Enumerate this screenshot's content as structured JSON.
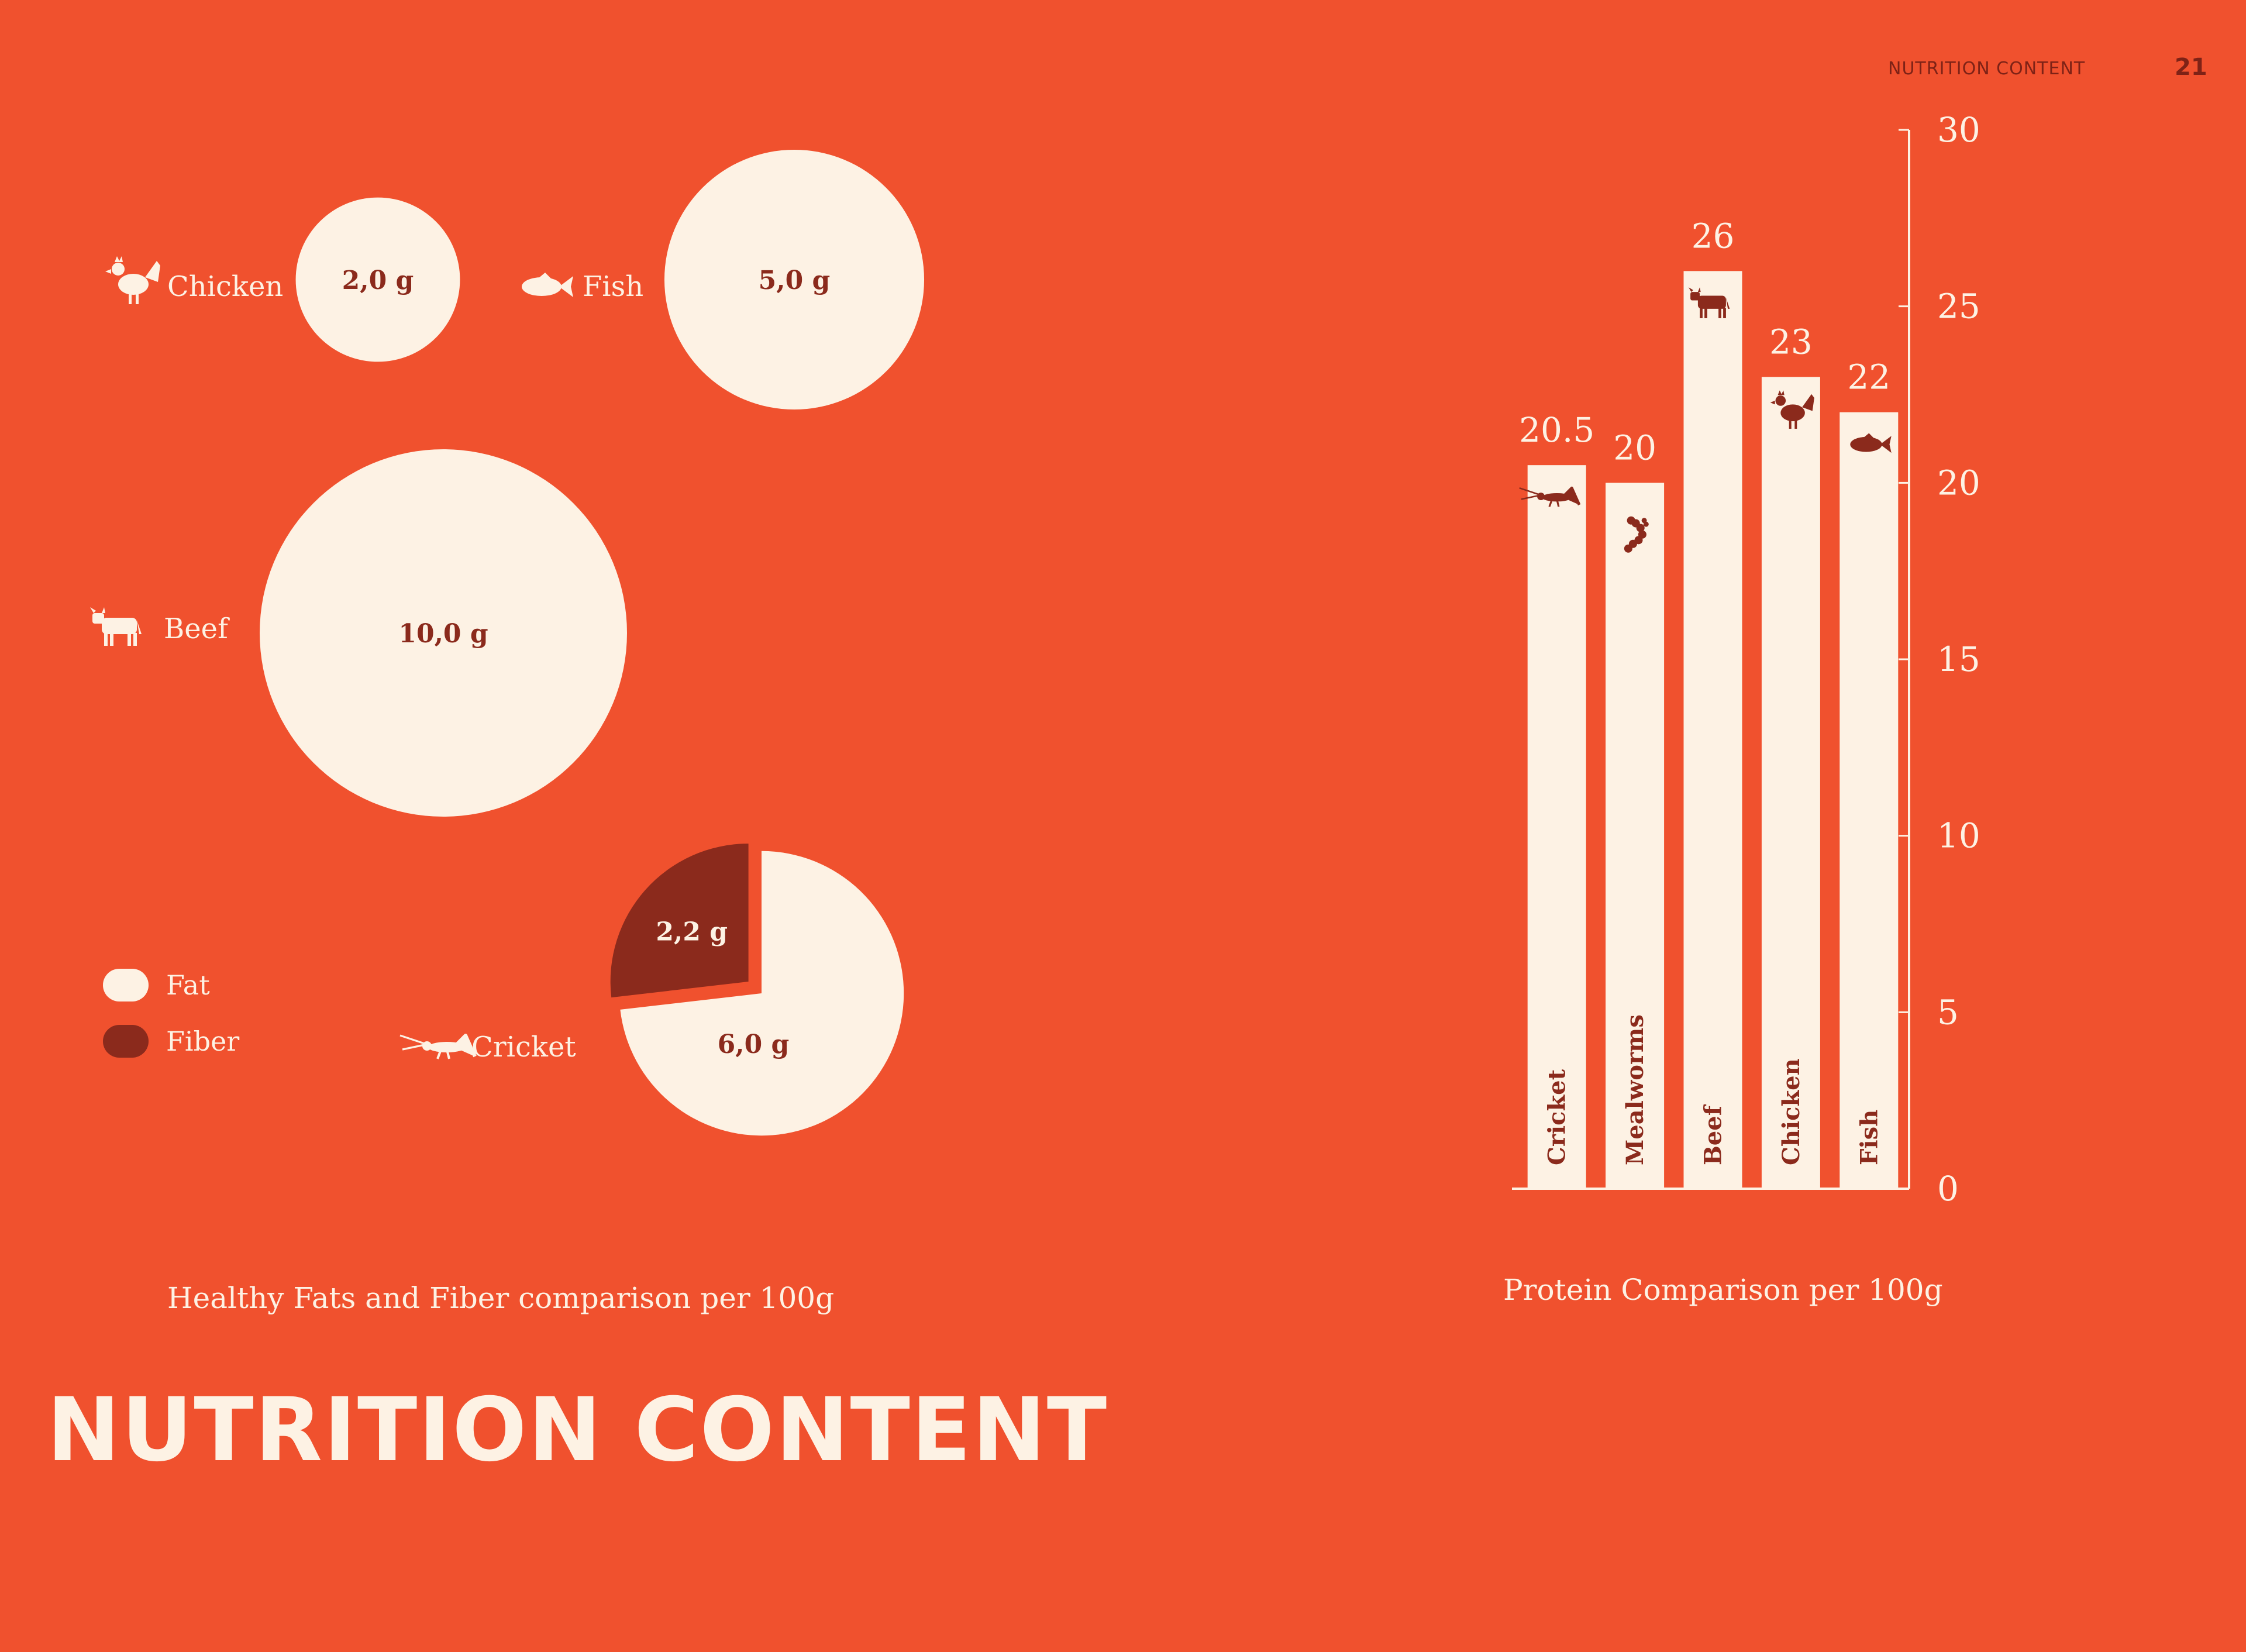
{
  "header": {
    "section": "NUTRITION CONTENT",
    "page_number": "21"
  },
  "page_title": "NUTRITION CONTENT",
  "colors": {
    "background": "#F0512E",
    "cream": "#FDF2E4",
    "dark": "#8B2A1C"
  },
  "chart_data": [
    {
      "type": "bubble",
      "title": "Healthy Fats and Fiber comparison per 100g",
      "legend": [
        {
          "name": "Fat",
          "color": "#FDF2E4"
        },
        {
          "name": "Fiber",
          "color": "#8B2A1C"
        }
      ],
      "items": [
        {
          "category": "Chicken",
          "icon": "chicken-icon",
          "fat": 2.0,
          "fat_label": "2,0 g"
        },
        {
          "category": "Fish",
          "icon": "fish-icon",
          "fat": 5.0,
          "fat_label": "5,0 g"
        },
        {
          "category": "Beef",
          "icon": "cow-icon",
          "fat": 10.0,
          "fat_label": "10,0 g"
        },
        {
          "category": "Cricket",
          "icon": "cricket-icon",
          "fat": 6.0,
          "fat_label": "6,0 g",
          "fiber": 2.2,
          "fiber_label": "2,2 g"
        }
      ]
    },
    {
      "type": "bar",
      "title": "Protein Comparison per 100g",
      "categories": [
        "Cricket",
        "Mealworms",
        "Beef",
        "Chicken",
        "Fish"
      ],
      "icons": [
        "cricket-icon",
        "mealworm-icon",
        "cow-icon",
        "chicken-icon",
        "fish-icon"
      ],
      "values": [
        20.5,
        20,
        26,
        23,
        22
      ],
      "value_labels": [
        "20.5",
        "20",
        "26",
        "23",
        "22"
      ],
      "ylim": [
        0,
        30
      ],
      "yticks": [
        "0",
        "5",
        "10",
        "15",
        "20",
        "25",
        "30"
      ]
    }
  ]
}
